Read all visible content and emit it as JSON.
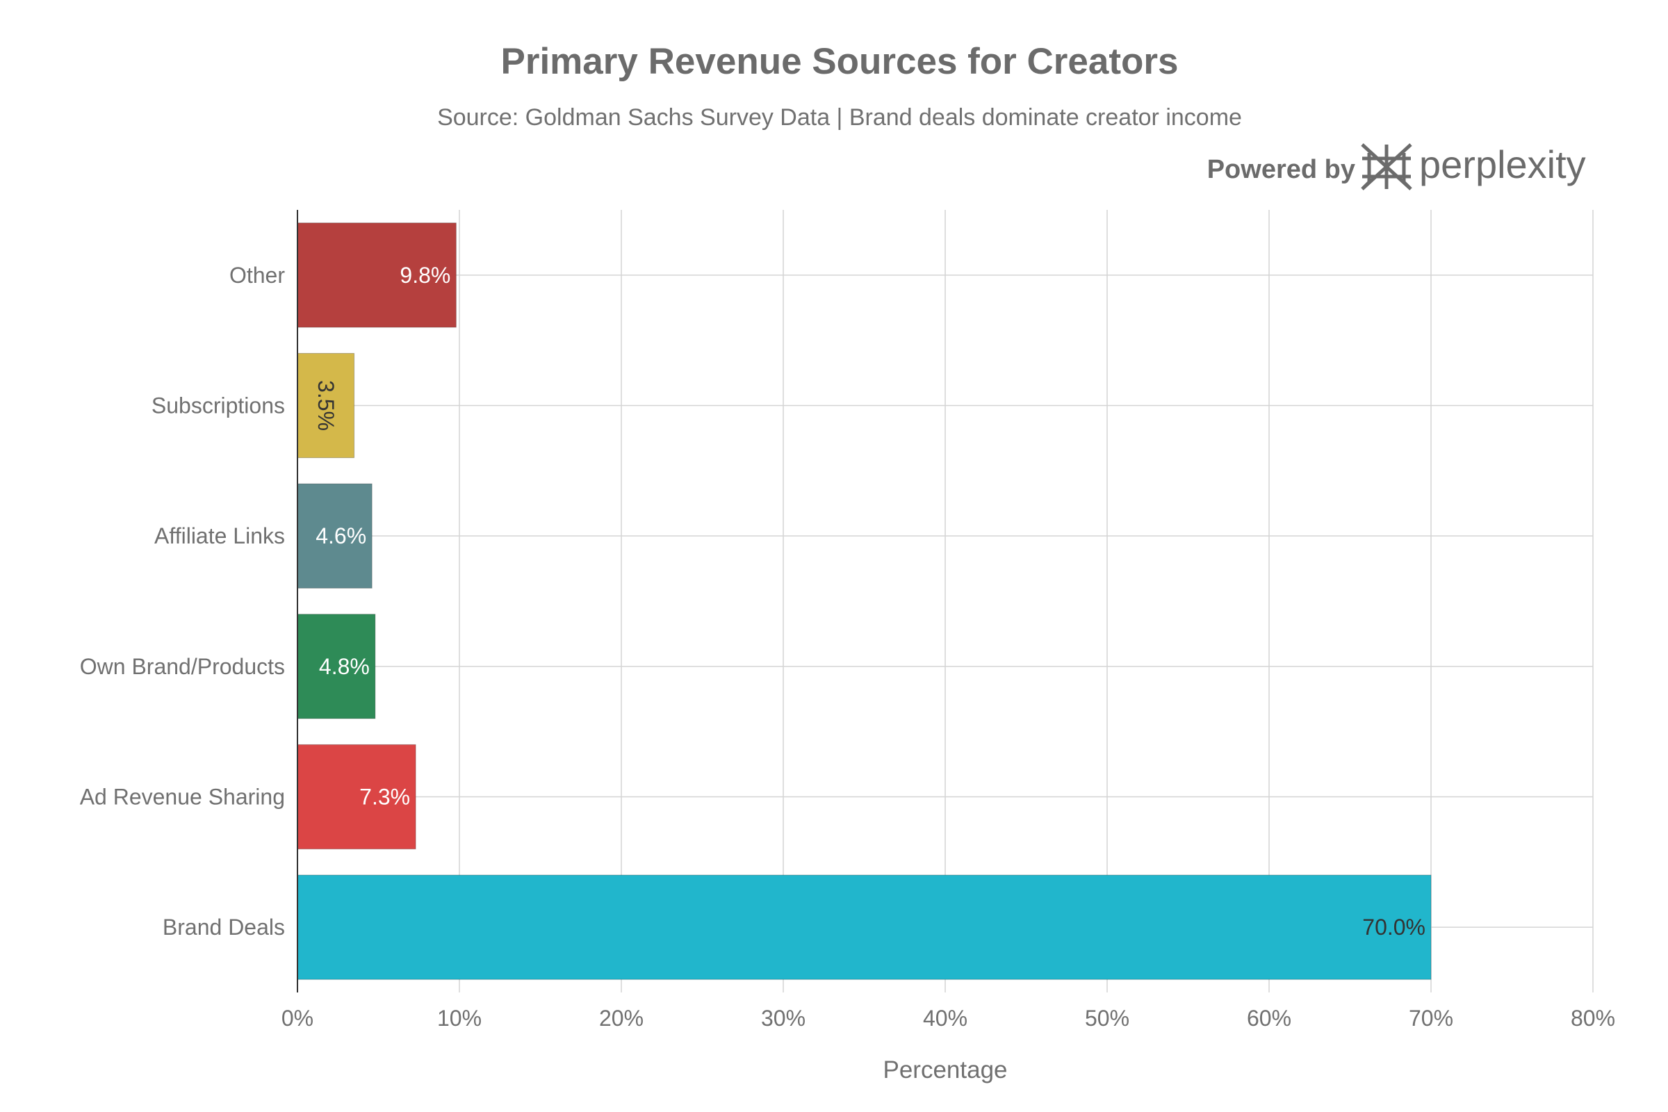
{
  "chart_data": {
    "type": "bar",
    "orientation": "horizontal",
    "title": "Primary Revenue Sources for Creators",
    "subtitle": "Source: Goldman Sachs Survey Data | Brand deals dominate creator income",
    "xlabel": "Percentage",
    "ylabel": "",
    "xlim": [
      0,
      80
    ],
    "x_ticks": [
      "0%",
      "10%",
      "20%",
      "30%",
      "40%",
      "50%",
      "60%",
      "70%",
      "80%"
    ],
    "x_tick_values": [
      0,
      10,
      20,
      30,
      40,
      50,
      60,
      70,
      80
    ],
    "grid": true,
    "categories": [
      "Other",
      "Subscriptions",
      "Affiliate Links",
      "Own Brand/Products",
      "Ad Revenue Sharing",
      "Brand Deals"
    ],
    "values": [
      9.8,
      3.5,
      4.6,
      4.8,
      7.3,
      70.0
    ],
    "data_labels": [
      "9.8%",
      "3.5%",
      "4.6%",
      "4.8%",
      "7.3%",
      "70.0%"
    ],
    "colors": [
      "#b5403e",
      "#d4b84a",
      "#5e8a8f",
      "#2e8b57",
      "#db4545",
      "#21b6cc"
    ],
    "label_colors": [
      "#ffffff",
      "#333333",
      "#ffffff",
      "#ffffff",
      "#ffffff",
      "#333333"
    ],
    "label_rotated": [
      false,
      true,
      false,
      false,
      false,
      false
    ]
  },
  "branding": {
    "powered_by": "Powered by",
    "name": "perplexity",
    "icon": "perplexity-logo-icon"
  }
}
